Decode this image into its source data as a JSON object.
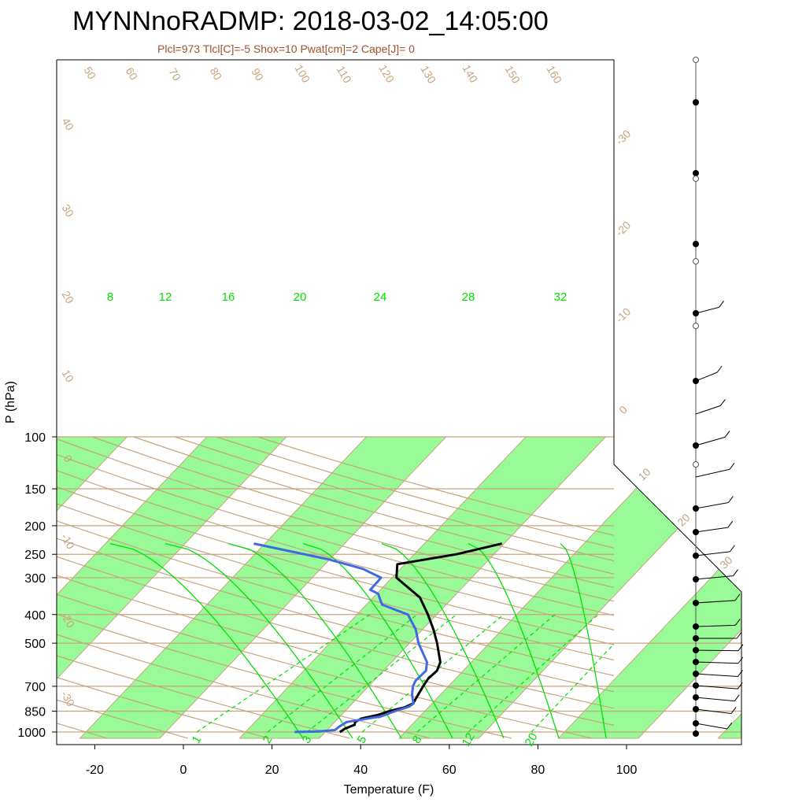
{
  "header": {
    "title": "MYNNnoRADMP: 2018-03-02_14:05:00",
    "subtitle": "Plcl=973 Tlcl[C]=-5 Shox=10 Pwat[cm]=2 Cape[J]= 0"
  },
  "chart_data": {
    "type": "line",
    "title": "MYNNnoRADMP: 2018-03-02_14:05:00",
    "subtitle": "Plcl=973 Tlcl[C]=-5 Shox=10 Pwat[cm]=2 Cape[J]= 0",
    "xlabel": "Temperature (F)",
    "ylabel": "P (hPa)",
    "xlim": [
      -28,
      110
    ],
    "ylim": [
      1050,
      100
    ],
    "y_scale": "log",
    "x_ticks": [
      -20,
      0,
      20,
      40,
      60,
      80,
      100
    ],
    "y_ticks": [
      100,
      150,
      200,
      250,
      300,
      400,
      500,
      700,
      850,
      1000
    ],
    "isotherm_labels_C": [
      "-30",
      "-20",
      "-10",
      "0",
      "10",
      "20",
      "30"
    ],
    "dry_adiabat_labels": [
      "-30",
      "-20",
      "-10",
      "0",
      "10",
      "20",
      "30",
      "40",
      "50",
      "60",
      "70",
      "80",
      "90",
      "100",
      "110",
      "120",
      "130",
      "140",
      "150",
      "160"
    ],
    "moist_adiabat_labels": [
      "8",
      "12",
      "16",
      "20",
      "24",
      "28",
      "32"
    ],
    "mixing_ratio_labels": [
      "1",
      "2",
      "3",
      "5",
      "8",
      "12",
      "20"
    ],
    "series": [
      {
        "name": "",
        "color": "#000000",
        "points": [
          {
            "p": 1000,
            "t": 35.3
          },
          {
            "p": 990,
            "t": 35.5
          },
          {
            "p": 975,
            "t": 35.7
          },
          {
            "p": 960,
            "t": 36.4
          },
          {
            "p": 945,
            "t": 37.1
          },
          {
            "p": 925,
            "t": 36.6
          },
          {
            "p": 900,
            "t": 37.3
          },
          {
            "p": 875,
            "t": 40.2
          },
          {
            "p": 850,
            "t": 42.0
          },
          {
            "p": 825,
            "t": 44.6
          },
          {
            "p": 800,
            "t": 45.7
          },
          {
            "p": 750,
            "t": 45.0
          },
          {
            "p": 700,
            "t": 44.3
          },
          {
            "p": 660,
            "t": 43.8
          },
          {
            "p": 620,
            "t": 44.1
          },
          {
            "p": 580,
            "t": 43.0
          },
          {
            "p": 500,
            "t": 38.2
          },
          {
            "p": 450,
            "t": 34.5
          },
          {
            "p": 400,
            "t": 30.0
          },
          {
            "p": 350,
            "t": 24.5
          },
          {
            "p": 300,
            "t": 15.0
          },
          {
            "p": 270,
            "t": 12.3
          },
          {
            "p": 250,
            "t": 23.5
          },
          {
            "p": 230,
            "t": 31.5
          }
        ]
      },
      {
        "name": "",
        "color": "#4169e1",
        "points": [
          {
            "p": 1000,
            "t": 25.1
          },
          {
            "p": 995,
            "t": 30.4
          },
          {
            "p": 985,
            "t": 33.8
          },
          {
            "p": 960,
            "t": 34.0
          },
          {
            "p": 925,
            "t": 34.7
          },
          {
            "p": 905,
            "t": 38.0
          },
          {
            "p": 885,
            "t": 41.3
          },
          {
            "p": 850,
            "t": 43.3
          },
          {
            "p": 820,
            "t": 45.5
          },
          {
            "p": 800,
            "t": 45.8
          },
          {
            "p": 750,
            "t": 43.7
          },
          {
            "p": 700,
            "t": 42.0
          },
          {
            "p": 670,
            "t": 41.4
          },
          {
            "p": 620,
            "t": 41.6
          },
          {
            "p": 580,
            "t": 40.0
          },
          {
            "p": 500,
            "t": 34.0
          },
          {
            "p": 450,
            "t": 30.5
          },
          {
            "p": 400,
            "t": 25.5
          },
          {
            "p": 370,
            "t": 17.5
          },
          {
            "p": 340,
            "t": 14.3
          },
          {
            "p": 330,
            "t": 11.7
          },
          {
            "p": 310,
            "t": 11.6
          },
          {
            "p": 300,
            "t": 11.5
          },
          {
            "p": 280,
            "t": 5.5
          },
          {
            "p": 260,
            "t": -4.3
          },
          {
            "p": 230,
            "t": -24.5
          }
        ]
      }
    ],
    "legend": "none"
  }
}
